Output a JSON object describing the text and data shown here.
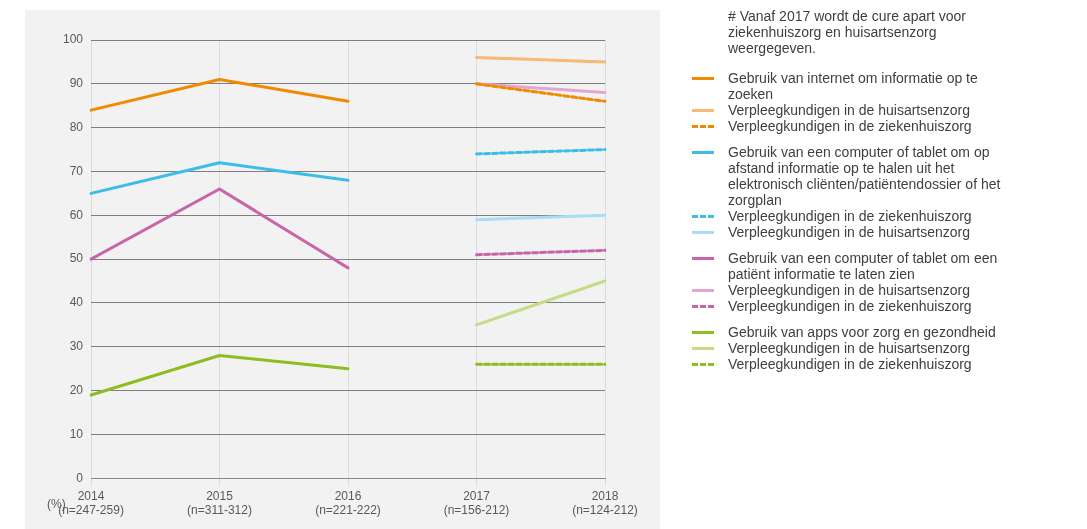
{
  "chart_data": {
    "type": "line",
    "categories": [
      "2014\n(n=247-259)",
      "2015\n(n=311-312)",
      "2016\n(n=221-222)",
      "2017\n(n=156-212)",
      "2018\n(n=124-212)"
    ],
    "ylabel": "(%)",
    "ylim": [
      0,
      100
    ],
    "yticks": [
      0,
      10,
      20,
      30,
      40,
      50,
      60,
      70,
      80,
      90,
      100
    ],
    "grid": true,
    "legend": "right",
    "marker": "none",
    "annotations": [
      "# Vanaf 2017 wordt de cure apart voor ziekenhuiszorg en huisartsenzorg weergegeven."
    ],
    "series": [
      {
        "name": "Gebruik van internet om informatie op te zoeken",
        "color": "#f08a00",
        "line_style": "solid",
        "values": [
          84,
          91,
          86,
          null,
          null
        ]
      },
      {
        "name": "Verpleegkundigen in de huisartsenzorg",
        "color": "#f8b878",
        "line_style": "solid",
        "values": [
          null,
          null,
          null,
          96,
          95
        ]
      },
      {
        "name": "Verpleegkundigen in de ziekenhuiszorg",
        "color": "#f08a00",
        "line_style": "dashed",
        "values": [
          null,
          null,
          null,
          90,
          86
        ]
      },
      {
        "name": "Gebruik van een computer of tablet om op afstand informatie op te halen uit het elektronisch cliënten/patiëntendossier of het zorgplan",
        "color": "#3cbde8",
        "line_style": "solid",
        "values": [
          65,
          72,
          68,
          null,
          null
        ]
      },
      {
        "name": "Verpleegkundigen in de ziekenhuiszorg",
        "color": "#3cbde8",
        "line_style": "dashed",
        "values": [
          null,
          null,
          null,
          74,
          75
        ]
      },
      {
        "name": "Verpleegkundigen in de huisartsenzorg",
        "color": "#a8ddf5",
        "line_style": "solid",
        "values": [
          null,
          null,
          null,
          59,
          60
        ]
      },
      {
        "name": "Gebruik van een computer of tablet om een patiënt informatie te laten zien",
        "color": "#c865a8",
        "line_style": "solid",
        "values": [
          50,
          66,
          48,
          null,
          null
        ]
      },
      {
        "name": "Verpleegkundigen in de huisartsenzorg",
        "color": "#e3a6d2",
        "line_style": "solid",
        "values": [
          null,
          null,
          null,
          90,
          88
        ]
      },
      {
        "name": "Verpleegkundigen in de ziekenhuiszorg",
        "color": "#c865a8",
        "line_style": "dashed",
        "values": [
          null,
          null,
          null,
          51,
          52
        ]
      },
      {
        "name": "Gebruik van apps voor zorg en gezondheid",
        "color": "#8cbe22",
        "line_style": "solid",
        "values": [
          19,
          28,
          25,
          null,
          null
        ]
      },
      {
        "name": "Verpleegkundigen in de huisartsenzorg",
        "color": "#c5dc87",
        "line_style": "solid",
        "values": [
          null,
          null,
          null,
          35,
          45
        ]
      },
      {
        "name": "Verpleegkundigen in de ziekenhuiszorg",
        "color": "#8cbe22",
        "line_style": "dashed",
        "values": [
          null,
          null,
          null,
          26,
          26
        ]
      }
    ]
  }
}
